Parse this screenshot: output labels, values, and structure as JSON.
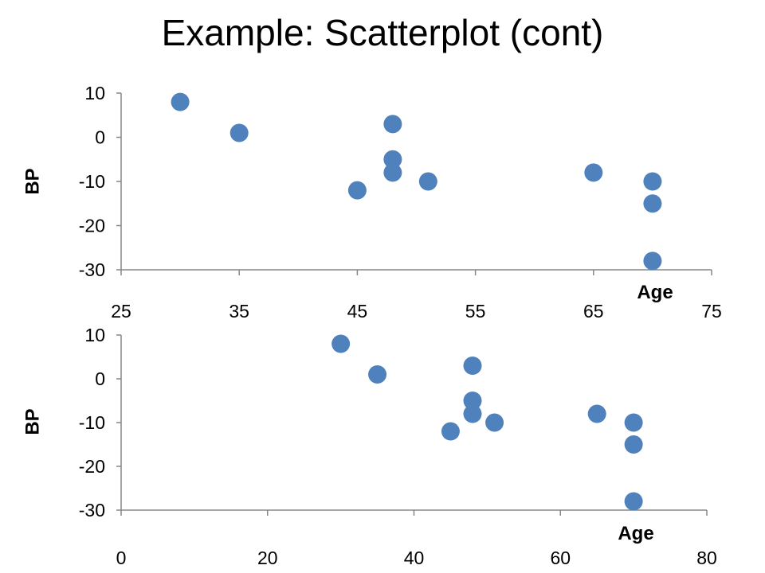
{
  "slide": {
    "title": "Example: Scatterplot (cont)"
  },
  "chart_data": [
    {
      "type": "scatter",
      "title": "",
      "xlabel": "Age",
      "ylabel": "BP",
      "xlim": [
        25,
        75
      ],
      "ylim": [
        -30,
        10
      ],
      "x_ticks": [
        25,
        35,
        45,
        55,
        65,
        75
      ],
      "y_ticks": [
        10,
        0,
        -10,
        -20,
        -30
      ],
      "marker_color": "#4f81bd",
      "series": [
        {
          "points": [
            {
              "x": 30,
              "y": 8
            },
            {
              "x": 35,
              "y": 1
            },
            {
              "x": 45,
              "y": -12
            },
            {
              "x": 48,
              "y": 3
            },
            {
              "x": 48,
              "y": -5
            },
            {
              "x": 48,
              "y": -8
            },
            {
              "x": 51,
              "y": -10
            },
            {
              "x": 65,
              "y": -8
            },
            {
              "x": 70,
              "y": -10
            },
            {
              "x": 70,
              "y": -15
            },
            {
              "x": 70,
              "y": -28
            }
          ]
        }
      ]
    },
    {
      "type": "scatter",
      "title": "",
      "xlabel": "Age",
      "ylabel": "BP",
      "xlim": [
        0,
        80
      ],
      "ylim": [
        -30,
        10
      ],
      "x_ticks": [
        0,
        20,
        40,
        60,
        80
      ],
      "y_ticks": [
        10,
        0,
        -10,
        -20,
        -30
      ],
      "marker_color": "#4f81bd",
      "series": [
        {
          "points": [
            {
              "x": 30,
              "y": 8
            },
            {
              "x": 35,
              "y": 1
            },
            {
              "x": 45,
              "y": -12
            },
            {
              "x": 48,
              "y": 3
            },
            {
              "x": 48,
              "y": -5
            },
            {
              "x": 48,
              "y": -8
            },
            {
              "x": 51,
              "y": -10
            },
            {
              "x": 65,
              "y": -8
            },
            {
              "x": 70,
              "y": -10
            },
            {
              "x": 70,
              "y": -15
            },
            {
              "x": 70,
              "y": -28
            }
          ]
        }
      ]
    }
  ]
}
